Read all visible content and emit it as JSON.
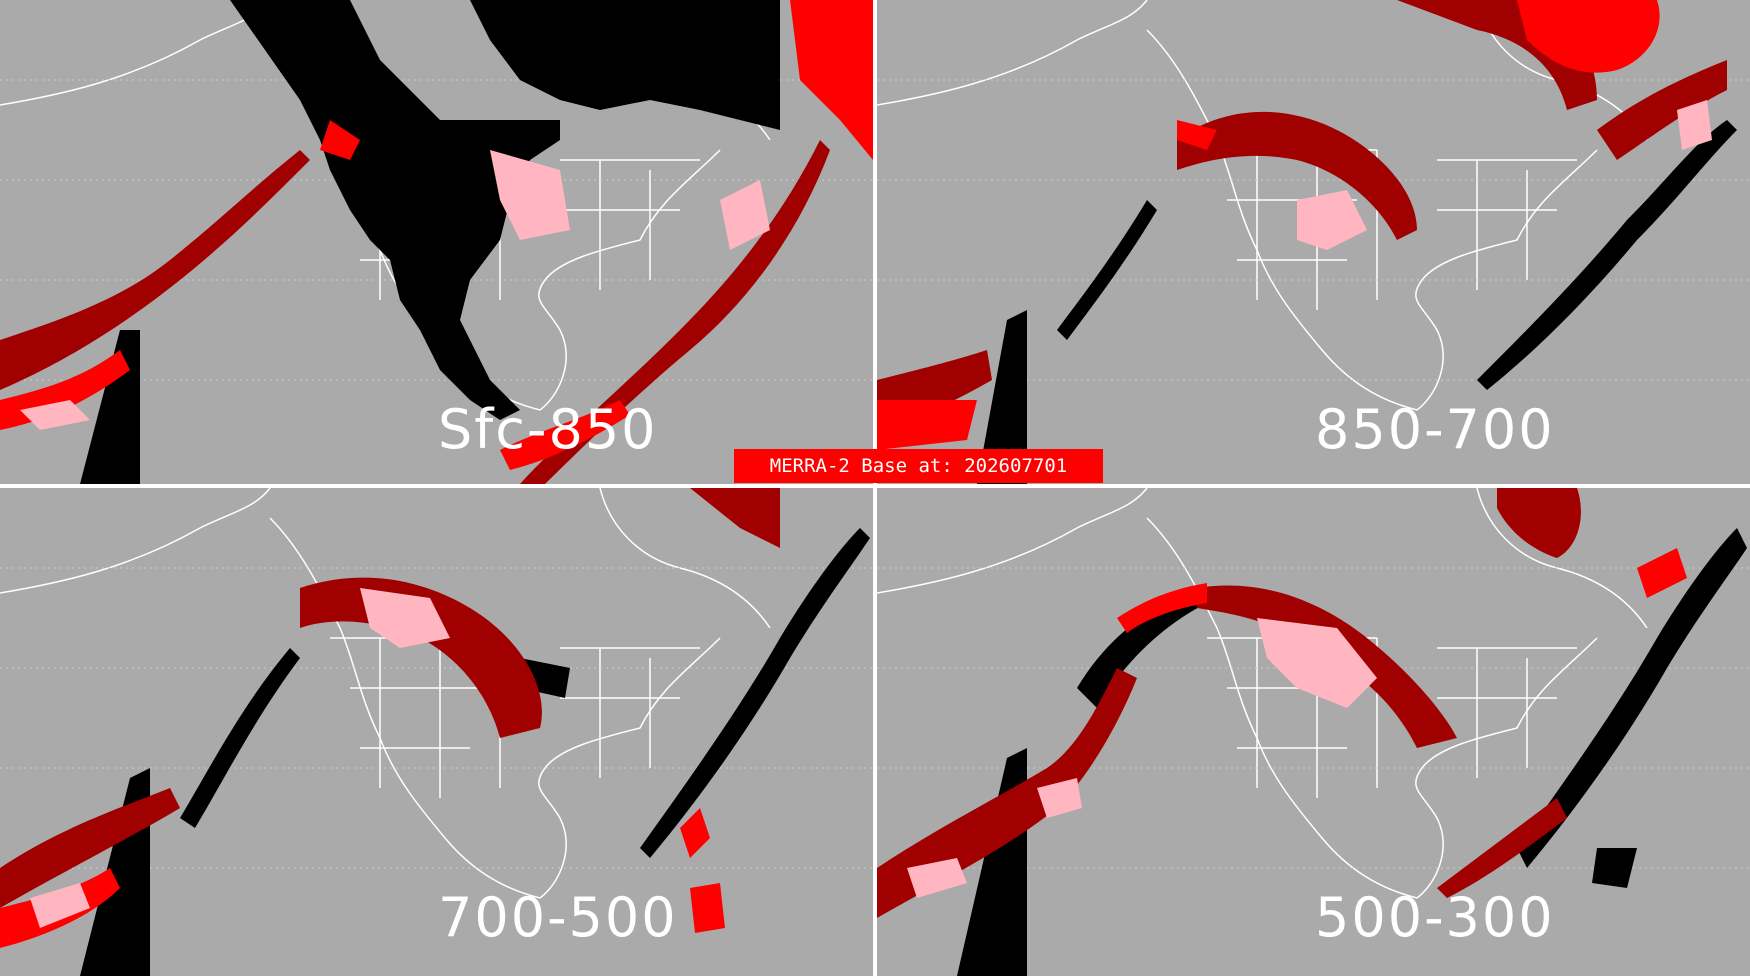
{
  "figure": {
    "banner": "MERRA-2 Base at: 202607701",
    "panels": [
      {
        "id": "tl",
        "label": "Sfc-850"
      },
      {
        "id": "tr",
        "label": "850-700"
      },
      {
        "id": "bl",
        "label": "700-500"
      },
      {
        "id": "br",
        "label": "500-300"
      }
    ]
  },
  "colors": {
    "background": "#aaaaaa",
    "coastline": "#ffffff",
    "dark_red": "#a00000",
    "red": "#ff0000",
    "pink": "#ffb6c1",
    "black": "#000000",
    "divider": "#ffffff"
  }
}
